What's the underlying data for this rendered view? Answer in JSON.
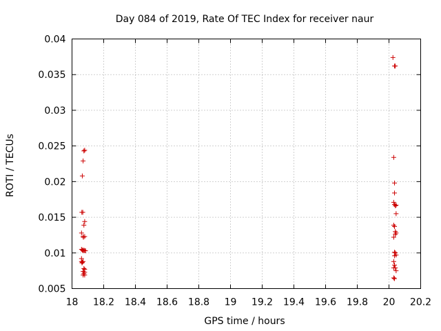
{
  "chart_data": {
    "type": "scatter",
    "title": "Day 084 of 2019, Rate Of TEC Index for receiver naur",
    "xlabel": "GPS time / hours",
    "ylabel": "ROTI / TECUs",
    "xlim": [
      18,
      20.2
    ],
    "ylim": [
      0.005,
      0.04
    ],
    "xticks": [
      "18",
      "18.2",
      "18.4",
      "18.6",
      "18.8",
      "19",
      "19.2",
      "19.4",
      "19.6",
      "19.8",
      "20",
      "20.2"
    ],
    "yticks": [
      "0.005",
      "0.01",
      "0.015",
      "0.02",
      "0.025",
      "0.03",
      "0.035",
      "0.04"
    ],
    "grid": true,
    "marker": "+",
    "color": "#cc0000",
    "series": [
      {
        "points": [
          [
            18.065,
            0.0208
          ],
          [
            18.07,
            0.0229
          ],
          [
            18.075,
            0.0243
          ],
          [
            18.08,
            0.0244
          ],
          [
            18.062,
            0.0157
          ],
          [
            18.068,
            0.0157
          ],
          [
            18.08,
            0.0144
          ],
          [
            18.075,
            0.0139
          ],
          [
            18.06,
            0.0128
          ],
          [
            18.07,
            0.0123
          ],
          [
            18.08,
            0.0123
          ],
          [
            18.072,
            0.0122
          ],
          [
            18.06,
            0.0105
          ],
          [
            18.065,
            0.0104
          ],
          [
            18.07,
            0.0103
          ],
          [
            18.075,
            0.0104
          ],
          [
            18.08,
            0.0103
          ],
          [
            18.085,
            0.0103
          ],
          [
            18.06,
            0.0092
          ],
          [
            18.06,
            0.0088
          ],
          [
            18.065,
            0.0087
          ],
          [
            18.07,
            0.0088
          ],
          [
            18.063,
            0.0086
          ],
          [
            18.075,
            0.0078
          ],
          [
            18.08,
            0.0077
          ],
          [
            18.07,
            0.0074
          ],
          [
            18.08,
            0.0073
          ],
          [
            18.075,
            0.0071
          ],
          [
            18.07,
            0.0069
          ],
          [
            18.08,
            0.0069
          ],
          [
            20.025,
            0.0374
          ],
          [
            20.035,
            0.0362
          ],
          [
            20.04,
            0.0362
          ],
          [
            20.03,
            0.0234
          ],
          [
            20.035,
            0.0198
          ],
          [
            20.035,
            0.0184
          ],
          [
            20.03,
            0.0171
          ],
          [
            20.035,
            0.0168
          ],
          [
            20.04,
            0.0166
          ],
          [
            20.045,
            0.0167
          ],
          [
            20.045,
            0.0155
          ],
          [
            20.03,
            0.0139
          ],
          [
            20.035,
            0.0137
          ],
          [
            20.04,
            0.013
          ],
          [
            20.045,
            0.0128
          ],
          [
            20.04,
            0.0126
          ],
          [
            20.03,
            0.0122
          ],
          [
            20.035,
            0.0101
          ],
          [
            20.04,
            0.01
          ],
          [
            20.045,
            0.0097
          ],
          [
            20.035,
            0.0096
          ],
          [
            20.03,
            0.0088
          ],
          [
            20.035,
            0.0083
          ],
          [
            20.04,
            0.0079
          ],
          [
            20.045,
            0.0075
          ],
          [
            20.03,
            0.0079
          ],
          [
            20.03,
            0.0065
          ],
          [
            20.035,
            0.0064
          ]
        ]
      }
    ]
  }
}
